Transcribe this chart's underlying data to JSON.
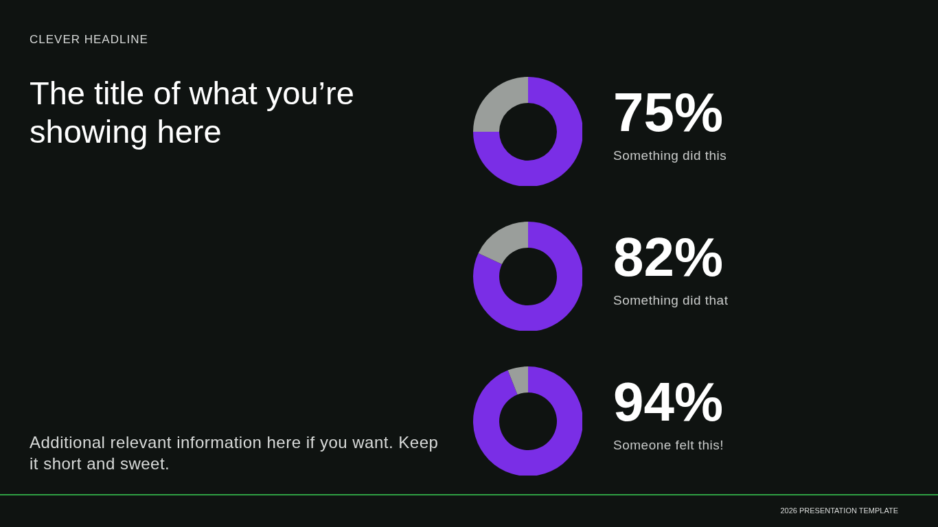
{
  "chart_data": [
    {
      "type": "other",
      "subtitle": "CLEVER HEADLINE",
      "title": "The title of what you’re showing here",
      "annotations": [
        "Additional relevant information here if you want. Keep it short and sweet.",
        "2026 PRESENTATION TEMPLATE"
      ]
    },
    {
      "type": "donut",
      "categories": [
        null,
        null
      ],
      "values": [
        75,
        25
      ],
      "colors": [
        "#7a2ee6",
        "#9a9e9b"
      ],
      "value_labels": [
        "75%",
        null
      ],
      "annotations": [
        "Something did this"
      ]
    },
    {
      "type": "donut",
      "categories": [
        null,
        null
      ],
      "values": [
        82,
        18
      ],
      "colors": [
        "#7a2ee6",
        "#9a9e9b"
      ],
      "value_labels": [
        "82%",
        null
      ],
      "annotations": [
        "Something did that"
      ]
    },
    {
      "type": "donut",
      "categories": [
        null,
        null
      ],
      "values": [
        94,
        6
      ],
      "colors": [
        "#7a2ee6",
        "#9a9e9b"
      ],
      "value_labels": [
        "94%",
        null
      ],
      "annotations": [
        "Someone felt this!"
      ]
    }
  ]
}
